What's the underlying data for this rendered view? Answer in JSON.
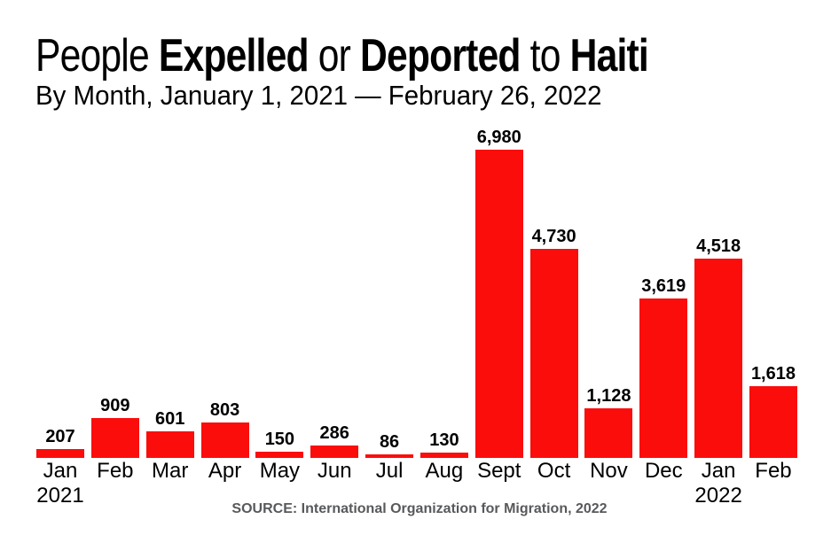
{
  "title": {
    "segments": [
      {
        "text": "People ",
        "bold": false
      },
      {
        "text": "Expelled",
        "bold": true
      },
      {
        "text": " or ",
        "bold": false
      },
      {
        "text": "Deported",
        "bold": true
      },
      {
        "text": " to ",
        "bold": false
      },
      {
        "text": "Haiti",
        "bold": true
      }
    ],
    "plain": "People Expelled or Deported to Haiti"
  },
  "subtitle": "By Month, January 1, 2021 — February 26, 2022",
  "source": "SOURCE: International Organization for Migration, 2022",
  "chart_data": {
    "type": "bar",
    "categories": [
      "Jan",
      "Feb",
      "Mar",
      "Apr",
      "May",
      "Jun",
      "Jul",
      "Aug",
      "Sept",
      "Oct",
      "Nov",
      "Dec",
      "Jan",
      "Feb"
    ],
    "year_labels": {
      "0": "2021",
      "12": "2022"
    },
    "values": [
      207,
      909,
      601,
      803,
      150,
      286,
      86,
      130,
      6980,
      4730,
      1128,
      3619,
      4518,
      1618
    ],
    "value_labels": [
      "207",
      "909",
      "601",
      "803",
      "150",
      "286",
      "86",
      "130",
      "6,980",
      "4,730",
      "1,128",
      "3,619",
      "4,518",
      "1,618"
    ],
    "bar_color": "#fb0d0b",
    "title": "People Expelled or Deported to Haiti",
    "subtitle": "By Month, January 1, 2021 — February 26, 2022",
    "xlabel": "",
    "ylabel": "",
    "ylim": [
      0,
      6980
    ],
    "grid": false,
    "legend": "none"
  }
}
